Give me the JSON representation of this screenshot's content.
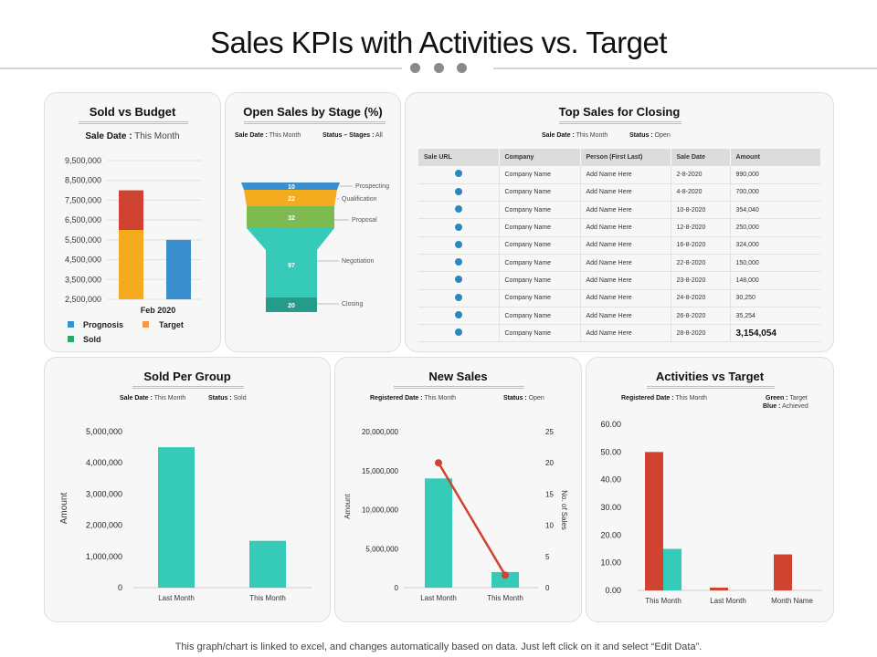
{
  "page": {
    "title": "Sales KPIs with Activities vs. Target",
    "footer": "This graph/chart is linked to excel, and changes automatically based on data. Just left click on it and select “Edit Data”."
  },
  "colors": {
    "red": "#cf4330",
    "orange": "#f5ab1e",
    "blue": "#3a8fcf",
    "teal": "#36cbb9",
    "green": "#2ea86a",
    "funnel": [
      "#3a8fcf",
      "#f5ab1e",
      "#7dbb51",
      "#36cbb9",
      "#259b8a"
    ]
  },
  "chart_data": [
    {
      "id": "sold_vs_budget",
      "type": "bar",
      "title": "Sold vs Budget",
      "subtitle_key": "Sale Date :",
      "subtitle_val": "This Month",
      "categories": [
        "Feb 2020"
      ],
      "series": [
        {
          "name": "Prognosis",
          "values": [
            6000000
          ]
        },
        {
          "name": "Target",
          "values": [
            2000000
          ]
        },
        {
          "name": "Sold",
          "values": [
            5500000
          ]
        }
      ],
      "ylim": [
        2500000,
        9500000
      ],
      "yticks": [
        "9,500,000",
        "8,500,000",
        "7,500,000",
        "6,500,000",
        "5,500,000",
        "4,500,000",
        "3,500,000",
        "2,500,000"
      ],
      "legend": [
        "Prognosis",
        "Target",
        "Sold"
      ],
      "legend_colors": [
        "#3a8fcf",
        "#f5ab1e",
        "#2ea86a"
      ]
    },
    {
      "id": "open_sales_by_stage",
      "type": "funnel",
      "title": "Open Sales by Stage (%)",
      "sub1_key": "Sale Date :",
      "sub1_val": "This Month",
      "sub2_key": "Status – Stages :",
      "sub2_val": "All",
      "stages": [
        "Prospecting",
        "Qualification",
        "Proposal",
        "Negotiation",
        "Closing"
      ],
      "values": [
        10,
        22,
        32,
        97,
        20
      ],
      "value_labels": [
        "10",
        "22",
        "32",
        "97",
        "20"
      ]
    },
    {
      "id": "sold_per_group",
      "type": "bar",
      "title": "Sold Per Group",
      "sub1_key": "Sale Date :",
      "sub1_val": "This Month",
      "sub2_key": "Status :",
      "sub2_val": "Sold",
      "ylabel": "Amount",
      "categories": [
        "Last Month",
        "This Month"
      ],
      "values": [
        4500000,
        1500000
      ],
      "ylim": [
        0,
        5000000
      ],
      "yticks": [
        "5,000,000",
        "4,000,000",
        "3,000,000",
        "2,000,000",
        "1,000,000",
        "0"
      ]
    },
    {
      "id": "new_sales",
      "type": "bar",
      "title": "New Sales",
      "sub1_key": "Registered Date :",
      "sub1_val": "This Month",
      "sub2_key": "Status :",
      "sub2_val": "Open",
      "ylabel": "Amount",
      "y2label": "No. of Sales",
      "categories": [
        "Last Month",
        "This Month"
      ],
      "series": [
        {
          "values": [
            14000000,
            2000000
          ]
        },
        {
          "values": [
            20,
            2
          ]
        }
      ],
      "ylim": [
        0,
        20000000
      ],
      "y2lim": [
        0,
        25
      ],
      "yticks": [
        "20,000,000",
        "15,000,000",
        "10,000,000",
        "5,000,000",
        "0"
      ],
      "y2ticks": [
        "25",
        "20",
        "15",
        "10",
        "5",
        "0"
      ]
    },
    {
      "id": "activities_vs_target",
      "type": "bar",
      "title": "Activities vs Target",
      "sub1_key": "Registered Date :",
      "sub1_val": "This Month",
      "sub2_key": "Green :",
      "sub2_val": "Target",
      "sub3_key": "Blue :",
      "sub3_val": "Achieved",
      "categories": [
        "This Month",
        "Last Month",
        "Month Name"
      ],
      "series": [
        {
          "values": [
            50,
            1,
            13
          ]
        },
        {
          "values": [
            15,
            0,
            0
          ]
        }
      ],
      "ylim": [
        0,
        60
      ],
      "yticks": [
        "60.00",
        "50.00",
        "40.00",
        "30.00",
        "20.00",
        "10.00",
        "0.00"
      ]
    }
  ],
  "top_sales": {
    "title": "Top Sales for Closing",
    "sub1_key": "Sale Date :",
    "sub1_val": "This Month",
    "sub2_key": "Status :",
    "sub2_val": "Open",
    "headers": [
      "Sale URL",
      "Company",
      "Person (First Last)",
      "Sale Date",
      "Amount"
    ],
    "rows": [
      [
        "Company Name",
        "Add Name Here",
        "2-8-2020",
        "990,000"
      ],
      [
        "Company Name",
        "Add Name Here",
        "4-8-2020",
        "700,000"
      ],
      [
        "Company Name",
        "Add Name Here",
        "10-8-2020",
        "354,040"
      ],
      [
        "Company Name",
        "Add Name Here",
        "12-8-2020",
        "250,000"
      ],
      [
        "Company Name",
        "Add Name Here",
        "16-8-2020",
        "324,000"
      ],
      [
        "Company Name",
        "Add Name Here",
        "22-8-2020",
        "150,000"
      ],
      [
        "Company Name",
        "Add Name Here",
        "23-8-2020",
        "148,000"
      ],
      [
        "Company Name",
        "Add Name Here",
        "24-8-2020",
        "30,250"
      ],
      [
        "Company Name",
        "Add Name Here",
        "26-8-2020",
        "35,254"
      ],
      [
        "Company Name",
        "Add Name Here",
        "28-8-2020",
        "3,154,054"
      ]
    ]
  }
}
